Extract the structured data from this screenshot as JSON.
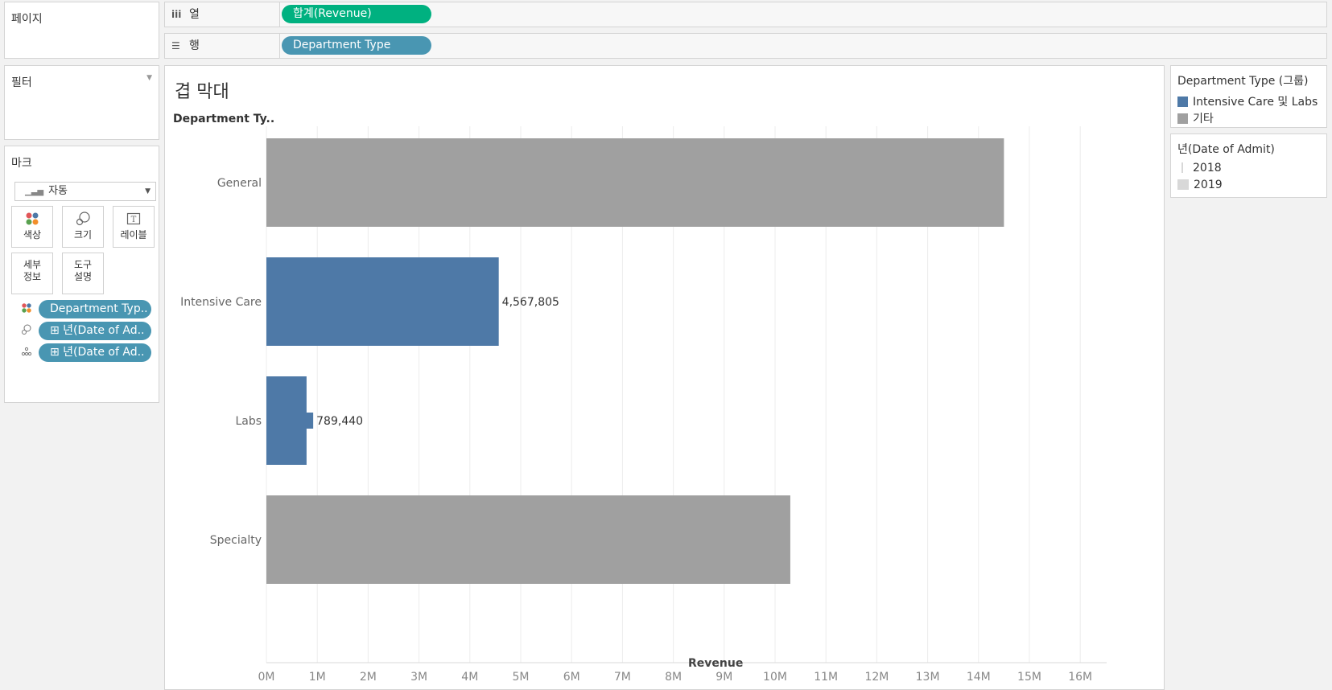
{
  "pages_panel": {
    "title": "페이지"
  },
  "filters_panel": {
    "title": "필터"
  },
  "columns_shelf": {
    "icon": "columns-icon",
    "label": "열",
    "pill": "합계(Revenue)"
  },
  "rows_shelf": {
    "icon": "rows-icon",
    "label": "행",
    "pill": "Department Type"
  },
  "marks_card": {
    "title": "마크",
    "mark_type": "자동",
    "buttons": [
      {
        "icon": "color-icon",
        "label": "색상"
      },
      {
        "icon": "size-icon",
        "label": "크기"
      },
      {
        "icon": "label-icon",
        "label": "레이블"
      },
      {
        "label_line1": "세부",
        "label_line2": "정보"
      },
      {
        "label_line1": "도구",
        "label_line2": "설명"
      }
    ],
    "pills": [
      {
        "icon": "color-icon",
        "text": "Department Typ.."
      },
      {
        "icon": "size-icon",
        "text": "⊞ 년(Date of Ad.."
      },
      {
        "icon": "detail-icon",
        "text": "⊞ 년(Date of Ad.."
      }
    ]
  },
  "view": {
    "sheet_title": "겹 막대",
    "row_header": "Department Ty.."
  },
  "legends": {
    "color": {
      "title": "Department Type (그룹)",
      "items": [
        {
          "label": "Intensive Care 및 Labs",
          "color": "#4e79a7"
        },
        {
          "label": "기타",
          "color": "#a0a0a0"
        }
      ]
    },
    "size": {
      "title": "년(Date of Admit)",
      "items": [
        {
          "label": "2018"
        },
        {
          "label": "2019"
        }
      ]
    }
  },
  "chart_data": {
    "type": "bar",
    "orientation": "horizontal",
    "categories": [
      "General",
      "Intensive Care",
      "Labs",
      "Specialty"
    ],
    "series": [
      {
        "name": "2019",
        "values": [
          14500000,
          4567805,
          789440,
          10300000
        ]
      },
      {
        "name": "2018",
        "values": [
          null,
          null,
          920000,
          null
        ]
      }
    ],
    "colors": [
      "#a0a0a0",
      "#4e79a7",
      "#4e79a7",
      "#a0a0a0"
    ],
    "data_labels": [
      "",
      "4,567,805",
      "789,440",
      ""
    ],
    "xlabel": "Revenue",
    "xlim": [
      0,
      16000000
    ],
    "ticks": [
      "0M",
      "1M",
      "2M",
      "3M",
      "4M",
      "5M",
      "6M",
      "7M",
      "8M",
      "9M",
      "10M",
      "11M",
      "12M",
      "13M",
      "14M",
      "15M",
      "16M"
    ],
    "grid": true
  }
}
